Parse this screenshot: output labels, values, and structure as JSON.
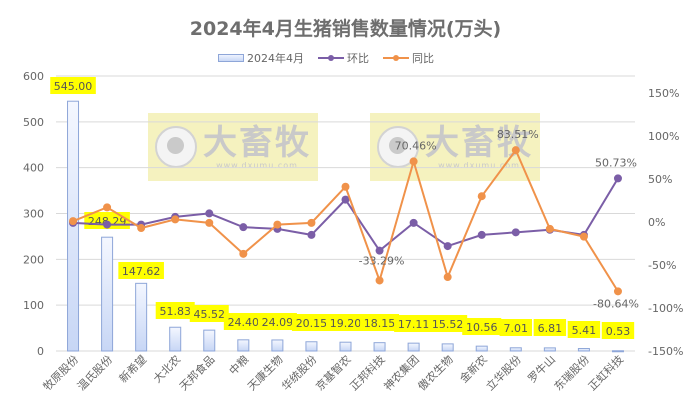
{
  "chart_data": {
    "type": "bar+line",
    "title": "2024年4月生猪销售数量情况(万头)",
    "legend": [
      "2024年4月",
      "环比",
      "同比"
    ],
    "legend_position": "top",
    "categories": [
      "牧原股份",
      "温氏股份",
      "新希望",
      "大北农",
      "天邦食品",
      "中粮",
      "天康生物",
      "华统股份",
      "京基智农",
      "正邦科技",
      "神农集团",
      "傲农生物",
      "金新农",
      "立华股份",
      "罗牛山",
      "东瑞股份",
      "正虹科技"
    ],
    "series": [
      {
        "name": "2024年4月",
        "type": "bar",
        "axis": "left",
        "values": [
          545.0,
          248.29,
          147.62,
          51.83,
          45.52,
          24.4,
          24.09,
          20.15,
          19.2,
          18.15,
          17.11,
          15.52,
          10.56,
          7.01,
          6.81,
          5.41,
          0.53
        ]
      },
      {
        "name": "环比",
        "type": "line",
        "axis": "right",
        "color": "#7b5ea7",
        "values": [
          -1,
          -3,
          -3,
          6,
          10,
          -6,
          -8,
          -15,
          26,
          -33.29,
          -1,
          -28,
          -15,
          -12,
          -9,
          -15,
          50.73
        ]
      },
      {
        "name": "同比",
        "type": "line",
        "axis": "right",
        "color": "#f0924a",
        "values": [
          1,
          17,
          -7,
          3,
          -1,
          -37,
          -3,
          -1,
          41,
          -68,
          70.46,
          -64,
          30,
          83.51,
          -8,
          -17,
          -80.64
        ]
      }
    ],
    "annotations": [
      "-33.29%",
      "70.46%",
      "83.51%",
      "50.73%",
      "-80.64%"
    ],
    "left_axis": {
      "ticks": [
        0,
        100,
        200,
        300,
        400,
        500,
        600
      ],
      "ylim": [
        0,
        600
      ]
    },
    "right_axis": {
      "ticks": [
        "-150%",
        "-100%",
        "-50%",
        "0%",
        "50%",
        "100%",
        "150%"
      ],
      "ylim": [
        -150,
        150
      ]
    },
    "grid": true
  },
  "bar_labels": [
    "545.00",
    "248.29",
    "147.62",
    "51.83",
    "45.52",
    "24.40",
    "24.09",
    "20.15",
    "19.20",
    "18.15",
    "17.11",
    "15.52",
    "10.56",
    "7.01",
    "6.81",
    "5.41",
    "0.53"
  ],
  "watermark": {
    "brand": "大畜牧",
    "url": "www.dxumu.com"
  },
  "colors": {
    "bar_fill": "#dfe8fb",
    "bar_stroke": "#8ea6d8",
    "label_bg": "#ffff00",
    "huanbi": "#7b5ea7",
    "tongbi": "#f0924a",
    "grid": "#d9d9d9"
  }
}
